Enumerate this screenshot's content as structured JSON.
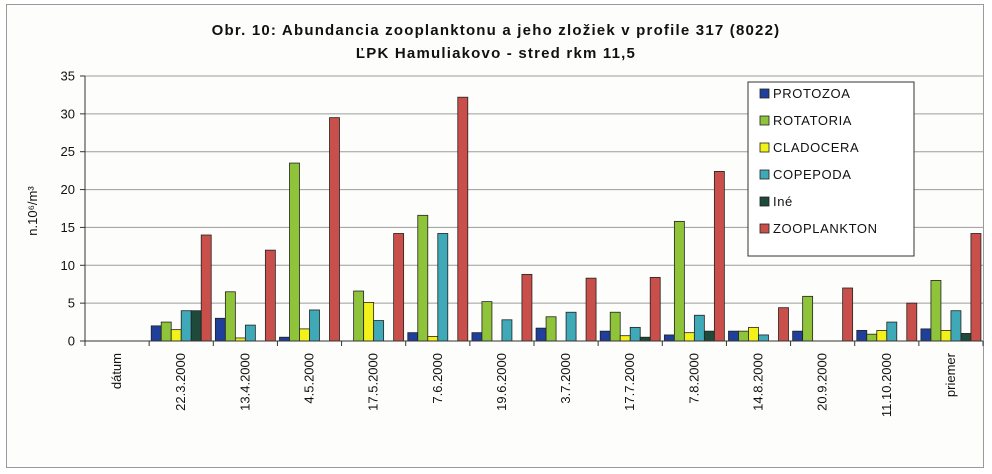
{
  "chart_data": {
    "type": "bar",
    "title": "Obr. 10:  Abundancia zooplanktonu a jeho zložiek v profile 317 (8022)",
    "subtitle": "ĽPK Hamuliakovo - stred rkm 11,5",
    "ylabel": "n.10⁶/m³",
    "xlabel": "",
    "ylim": [
      0,
      35
    ],
    "yticks": [
      "0",
      "5",
      "10",
      "15",
      "20",
      "25",
      "30",
      "35"
    ],
    "grid": true,
    "legend_position": "top-right",
    "categories": [
      "dátum",
      "22.3.2000",
      "13.4.2000",
      "4.5.2000",
      "17.5.2000",
      "7.6.2000",
      "19.6.2000",
      "3.7.2000",
      "17.7.2000",
      "7.8.2000",
      "14.8.2000",
      "20.9.2000",
      "11.10.2000",
      "priemer"
    ],
    "series": [
      {
        "name": "PROTOZOA",
        "color": "#1f3f9a",
        "values": [
          0,
          2.0,
          3.0,
          0.5,
          0,
          1.1,
          1.1,
          1.7,
          1.3,
          0.8,
          1.3,
          1.3,
          1.4,
          1.6
        ]
      },
      {
        "name": "ROTATORIA",
        "color": "#8fc43a",
        "values": [
          0,
          2.5,
          6.5,
          23.5,
          6.6,
          16.6,
          5.2,
          3.2,
          3.8,
          15.8,
          1.3,
          5.9,
          0.9,
          8.0
        ]
      },
      {
        "name": "CLADOCERA",
        "color": "#f2f21a",
        "values": [
          0,
          1.5,
          0.4,
          1.6,
          5.1,
          0.6,
          0,
          0,
          0.7,
          1.1,
          1.8,
          0,
          1.4,
          1.4
        ]
      },
      {
        "name": "COPEPODA",
        "color": "#3fa9b8",
        "values": [
          0,
          4.0,
          2.1,
          4.1,
          2.7,
          14.2,
          2.8,
          3.8,
          1.8,
          3.4,
          0.8,
          0,
          2.5,
          4.0
        ]
      },
      {
        "name": "Iné",
        "color": "#1d4a3a",
        "values": [
          0,
          4.0,
          0,
          0,
          0,
          0,
          0,
          0,
          0.5,
          1.3,
          0,
          0,
          0,
          1.0
        ]
      },
      {
        "name": "ZOOPLANKTON",
        "color": "#c9504a",
        "values": [
          0,
          14.0,
          12.0,
          29.5,
          14.2,
          32.2,
          8.8,
          8.3,
          8.4,
          22.4,
          4.4,
          7.0,
          5.0,
          14.2
        ]
      }
    ]
  }
}
